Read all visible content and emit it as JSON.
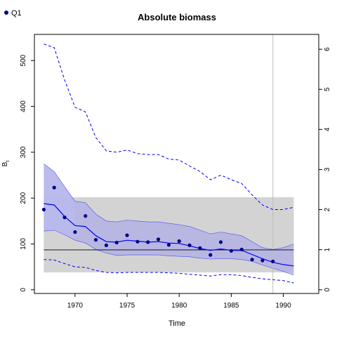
{
  "chart_data": {
    "type": "line",
    "title": "Absolute biomass",
    "xlabel": "Time",
    "ylabel": "B",
    "ylabel_sub": "t",
    "xlim": [
      1966.1,
      1993.4
    ],
    "ylim": [
      -8,
      557
    ],
    "right_ylim": [
      -0.0915,
      6.37
    ],
    "x_ticks": [
      1970,
      1975,
      1980,
      1985,
      1990
    ],
    "y_ticks": [
      0,
      100,
      200,
      300,
      400,
      500
    ],
    "right_ticks": [
      0,
      1,
      2,
      3,
      4,
      5,
      6
    ],
    "legend": {
      "position": "top-left",
      "label": "Q1",
      "color": "#00008B"
    },
    "colors": {
      "median": "#0000FF",
      "ci": "#0000FF",
      "ci_fill": "#ADADE6",
      "ci_fill_early": "#DCDCFF",
      "band_fill": "#D3D3D3",
      "points": "#00008B",
      "reference_line": "#000000",
      "vline": "#BEBEBE"
    },
    "reference_line_y": 87,
    "vline_x": 1989,
    "band": {
      "x": [
        1967,
        1991
      ],
      "y": [
        38,
        202
      ]
    },
    "years": [
      1967,
      1968,
      1969,
      1970,
      1971,
      1972,
      1973,
      1974,
      1975,
      1976,
      1977,
      1978,
      1979,
      1980,
      1981,
      1982,
      1983,
      1984,
      1985,
      1986,
      1987,
      1988,
      1989,
      1990,
      1991
    ],
    "median": [
      188,
      185,
      160,
      140,
      138,
      118,
      105,
      104,
      108,
      106,
      104,
      105,
      102,
      101,
      96,
      90,
      86,
      89,
      86,
      86,
      77,
      68,
      60,
      55,
      52
    ],
    "ci_lower": [
      128,
      130,
      120,
      108,
      102,
      88,
      80,
      75,
      76,
      76,
      76,
      76,
      74,
      73,
      72,
      69,
      67,
      68,
      68,
      66,
      62,
      54,
      47,
      40,
      32
    ],
    "ci_upper": [
      275,
      258,
      225,
      193,
      190,
      165,
      150,
      148,
      152,
      150,
      148,
      148,
      145,
      142,
      138,
      130,
      122,
      126,
      122,
      118,
      105,
      92,
      88,
      92,
      100
    ],
    "outer_upper": [
      536,
      528,
      458,
      398,
      388,
      332,
      303,
      300,
      305,
      297,
      295,
      295,
      285,
      283,
      270,
      258,
      240,
      250,
      240,
      232,
      207,
      185,
      175,
      175,
      180
    ],
    "outer_lower": [
      66,
      65,
      57,
      50,
      49,
      42,
      38,
      37,
      38,
      38,
      38,
      38,
      37,
      36,
      34,
      32,
      30,
      33,
      33,
      31,
      27,
      24,
      22,
      20,
      15
    ],
    "points_x": [
      1967,
      1968,
      1969,
      1970,
      1971,
      1972,
      1973,
      1974,
      1975,
      1976,
      1977,
      1978,
      1979,
      1980,
      1981,
      1982,
      1983,
      1984,
      1985,
      1986,
      1987,
      1988,
      1989
    ],
    "points_y": [
      175,
      223,
      158,
      126,
      161,
      109,
      97,
      103,
      119,
      105,
      104,
      110,
      98,
      106,
      97,
      91,
      76,
      104,
      85,
      88,
      66,
      64,
      62
    ]
  }
}
